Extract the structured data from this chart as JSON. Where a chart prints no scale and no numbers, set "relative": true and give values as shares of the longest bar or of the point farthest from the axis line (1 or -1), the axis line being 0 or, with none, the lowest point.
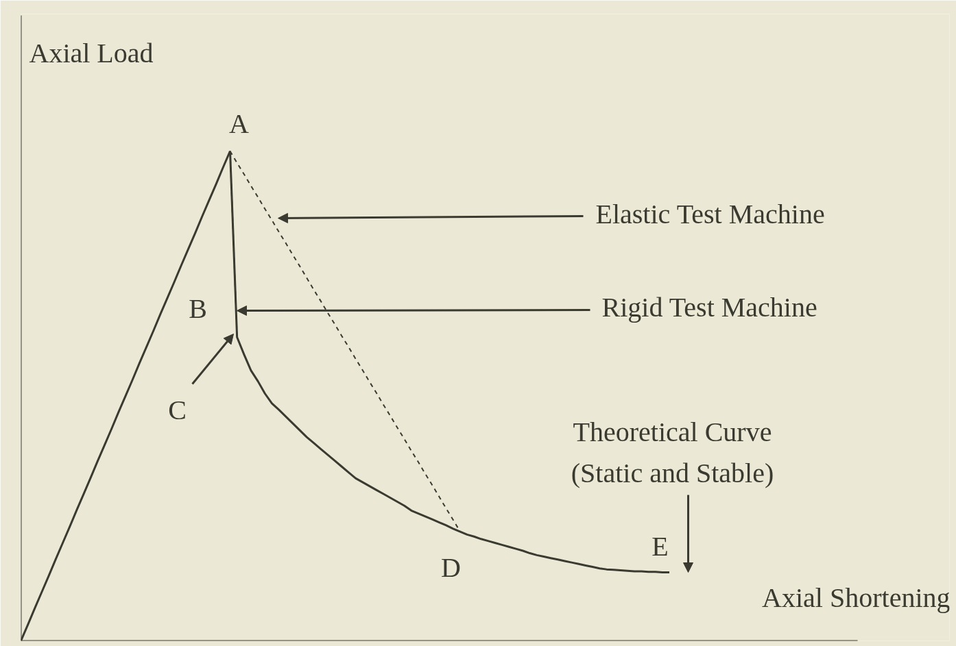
{
  "chart_data": {
    "type": "line",
    "relative": true,
    "xlabel": "Axial Shortening",
    "ylabel": "Axial Load",
    "categories": [
      null,
      null,
      null,
      null,
      null,
      null,
      null,
      null,
      null,
      null,
      null,
      null,
      null,
      null,
      null,
      null,
      null,
      null,
      null,
      null,
      null,
      null,
      null,
      null,
      null,
      null,
      null,
      null,
      null,
      null,
      null,
      null,
      null,
      null,
      null,
      null,
      null,
      null,
      null,
      null,
      null,
      null,
      null,
      null,
      null,
      null,
      null,
      null,
      null,
      null,
      null,
      null,
      null,
      null,
      null,
      null,
      null,
      null,
      null,
      null,
      null,
      null,
      null,
      null,
      null,
      null,
      null,
      null,
      null,
      null,
      null,
      null,
      null,
      null,
      null,
      null,
      null,
      null,
      null,
      null,
      null,
      null,
      null,
      null,
      null,
      null,
      null,
      null,
      null,
      null,
      null,
      null,
      null,
      null
    ],
    "series": [
      {
        "color": "#3a3a30",
        "line_style": "solid",
        "values": [
          0,
          0.033,
          0.067,
          0.1,
          0.133,
          0.167,
          0.2,
          0.233,
          0.267,
          0.3,
          0.333,
          0.367,
          0.4,
          0.433,
          0.467,
          0.5,
          0.533,
          0.567,
          0.6,
          0.633,
          0.667,
          0.7,
          0.733,
          0.767,
          0.8,
          0.833,
          0.867,
          0.9,
          0.933,
          0.967,
          1,
          null,
          null,
          null,
          null,
          null,
          null,
          null,
          null,
          null,
          null,
          null,
          null,
          null,
          null,
          null,
          null,
          null,
          null,
          null,
          null,
          null,
          null,
          null,
          null,
          null,
          null,
          null,
          null,
          null,
          null,
          null,
          null,
          null,
          null,
          null,
          null,
          null,
          null,
          null,
          null,
          null,
          null,
          null,
          null,
          null,
          null,
          null,
          null,
          null,
          null,
          null,
          null,
          null,
          null,
          null,
          null,
          null,
          null,
          null,
          null,
          null,
          null,
          null
        ]
      },
      {
        "color": "#3a3a30",
        "line_style": "solid",
        "values": [
          null,
          null,
          null,
          null,
          null,
          null,
          null,
          null,
          null,
          null,
          null,
          null,
          null,
          null,
          null,
          null,
          null,
          null,
          null,
          null,
          null,
          null,
          null,
          null,
          null,
          null,
          null,
          null,
          null,
          null,
          1,
          0.62,
          0.585,
          0.552,
          0.53,
          0.505,
          0.485,
          0.472,
          0.458,
          0.444,
          0.43,
          0.416,
          0.404,
          0.392,
          0.38,
          0.368,
          0.356,
          0.344,
          0.332,
          0.324,
          0.316,
          0.308,
          0.3,
          0.292,
          0.284,
          0.276,
          0.266,
          0.26,
          0.254,
          0.248,
          0.242,
          0.236,
          0.229,
          0.223,
          0.217,
          0.213,
          0.208,
          0.204,
          0.2,
          0.196,
          0.192,
          0.188,
          0.184,
          0.179,
          0.175,
          0.172,
          0.169,
          0.166,
          0.163,
          0.16,
          0.157,
          0.154,
          0.151,
          0.148,
          0.146,
          0.145,
          0.144,
          0.143,
          0.142,
          0.142,
          0.141,
          0.141,
          0.14,
          0.14
        ]
      },
      {
        "color": "#3a3a30",
        "line_style": "dashed",
        "values": [
          null,
          null,
          null,
          null,
          null,
          null,
          null,
          null,
          null,
          null,
          null,
          null,
          null,
          null,
          null,
          null,
          null,
          null,
          null,
          null,
          null,
          null,
          null,
          null,
          null,
          null,
          null,
          null,
          null,
          null,
          1,
          0.62,
          null,
          null,
          null,
          null,
          null,
          null,
          null,
          null,
          null,
          null,
          null,
          null,
          null,
          null,
          null,
          null,
          null,
          null,
          null,
          null,
          null,
          null,
          null,
          null,
          null,
          null,
          null,
          null,
          null,
          null,
          null,
          null,
          null,
          null,
          null,
          null,
          null,
          null,
          null,
          null,
          null,
          null,
          null,
          null,
          null,
          null,
          null,
          null,
          null,
          null,
          null,
          null,
          null,
          null,
          null,
          null,
          null,
          null,
          null,
          null,
          null,
          null
        ]
      },
      {
        "color": "#3a3a30",
        "line_style": "dashed",
        "values": [
          null,
          null,
          null,
          null,
          null,
          null,
          null,
          null,
          null,
          null,
          null,
          null,
          null,
          null,
          null,
          null,
          null,
          null,
          null,
          null,
          null,
          null,
          null,
          null,
          null,
          null,
          null,
          null,
          null,
          null,
          1,
          0.976,
          0.953,
          0.929,
          0.906,
          0.882,
          0.859,
          0.835,
          0.812,
          0.788,
          0.765,
          0.741,
          0.717,
          0.694,
          0.67,
          0.647,
          0.623,
          0.6,
          0.576,
          0.553,
          0.529,
          0.506,
          0.482,
          0.459,
          0.435,
          0.412,
          0.388,
          0.365,
          0.341,
          0.318,
          0.294,
          0.27,
          0.247,
          0.223,
          null,
          null,
          null,
          null,
          null,
          null,
          null,
          null,
          null,
          null,
          null,
          null,
          null,
          null,
          null,
          null,
          null,
          null,
          null,
          null,
          null,
          null,
          null,
          null,
          null,
          null,
          null,
          null,
          null,
          null
        ]
      }
    ],
    "annotations": [
      "A",
      "B",
      "C",
      "D",
      "E",
      "Elastic Test Machine",
      "Rigid Test Machine",
      "Theoretical Curve\n(Static and Stable)"
    ]
  }
}
